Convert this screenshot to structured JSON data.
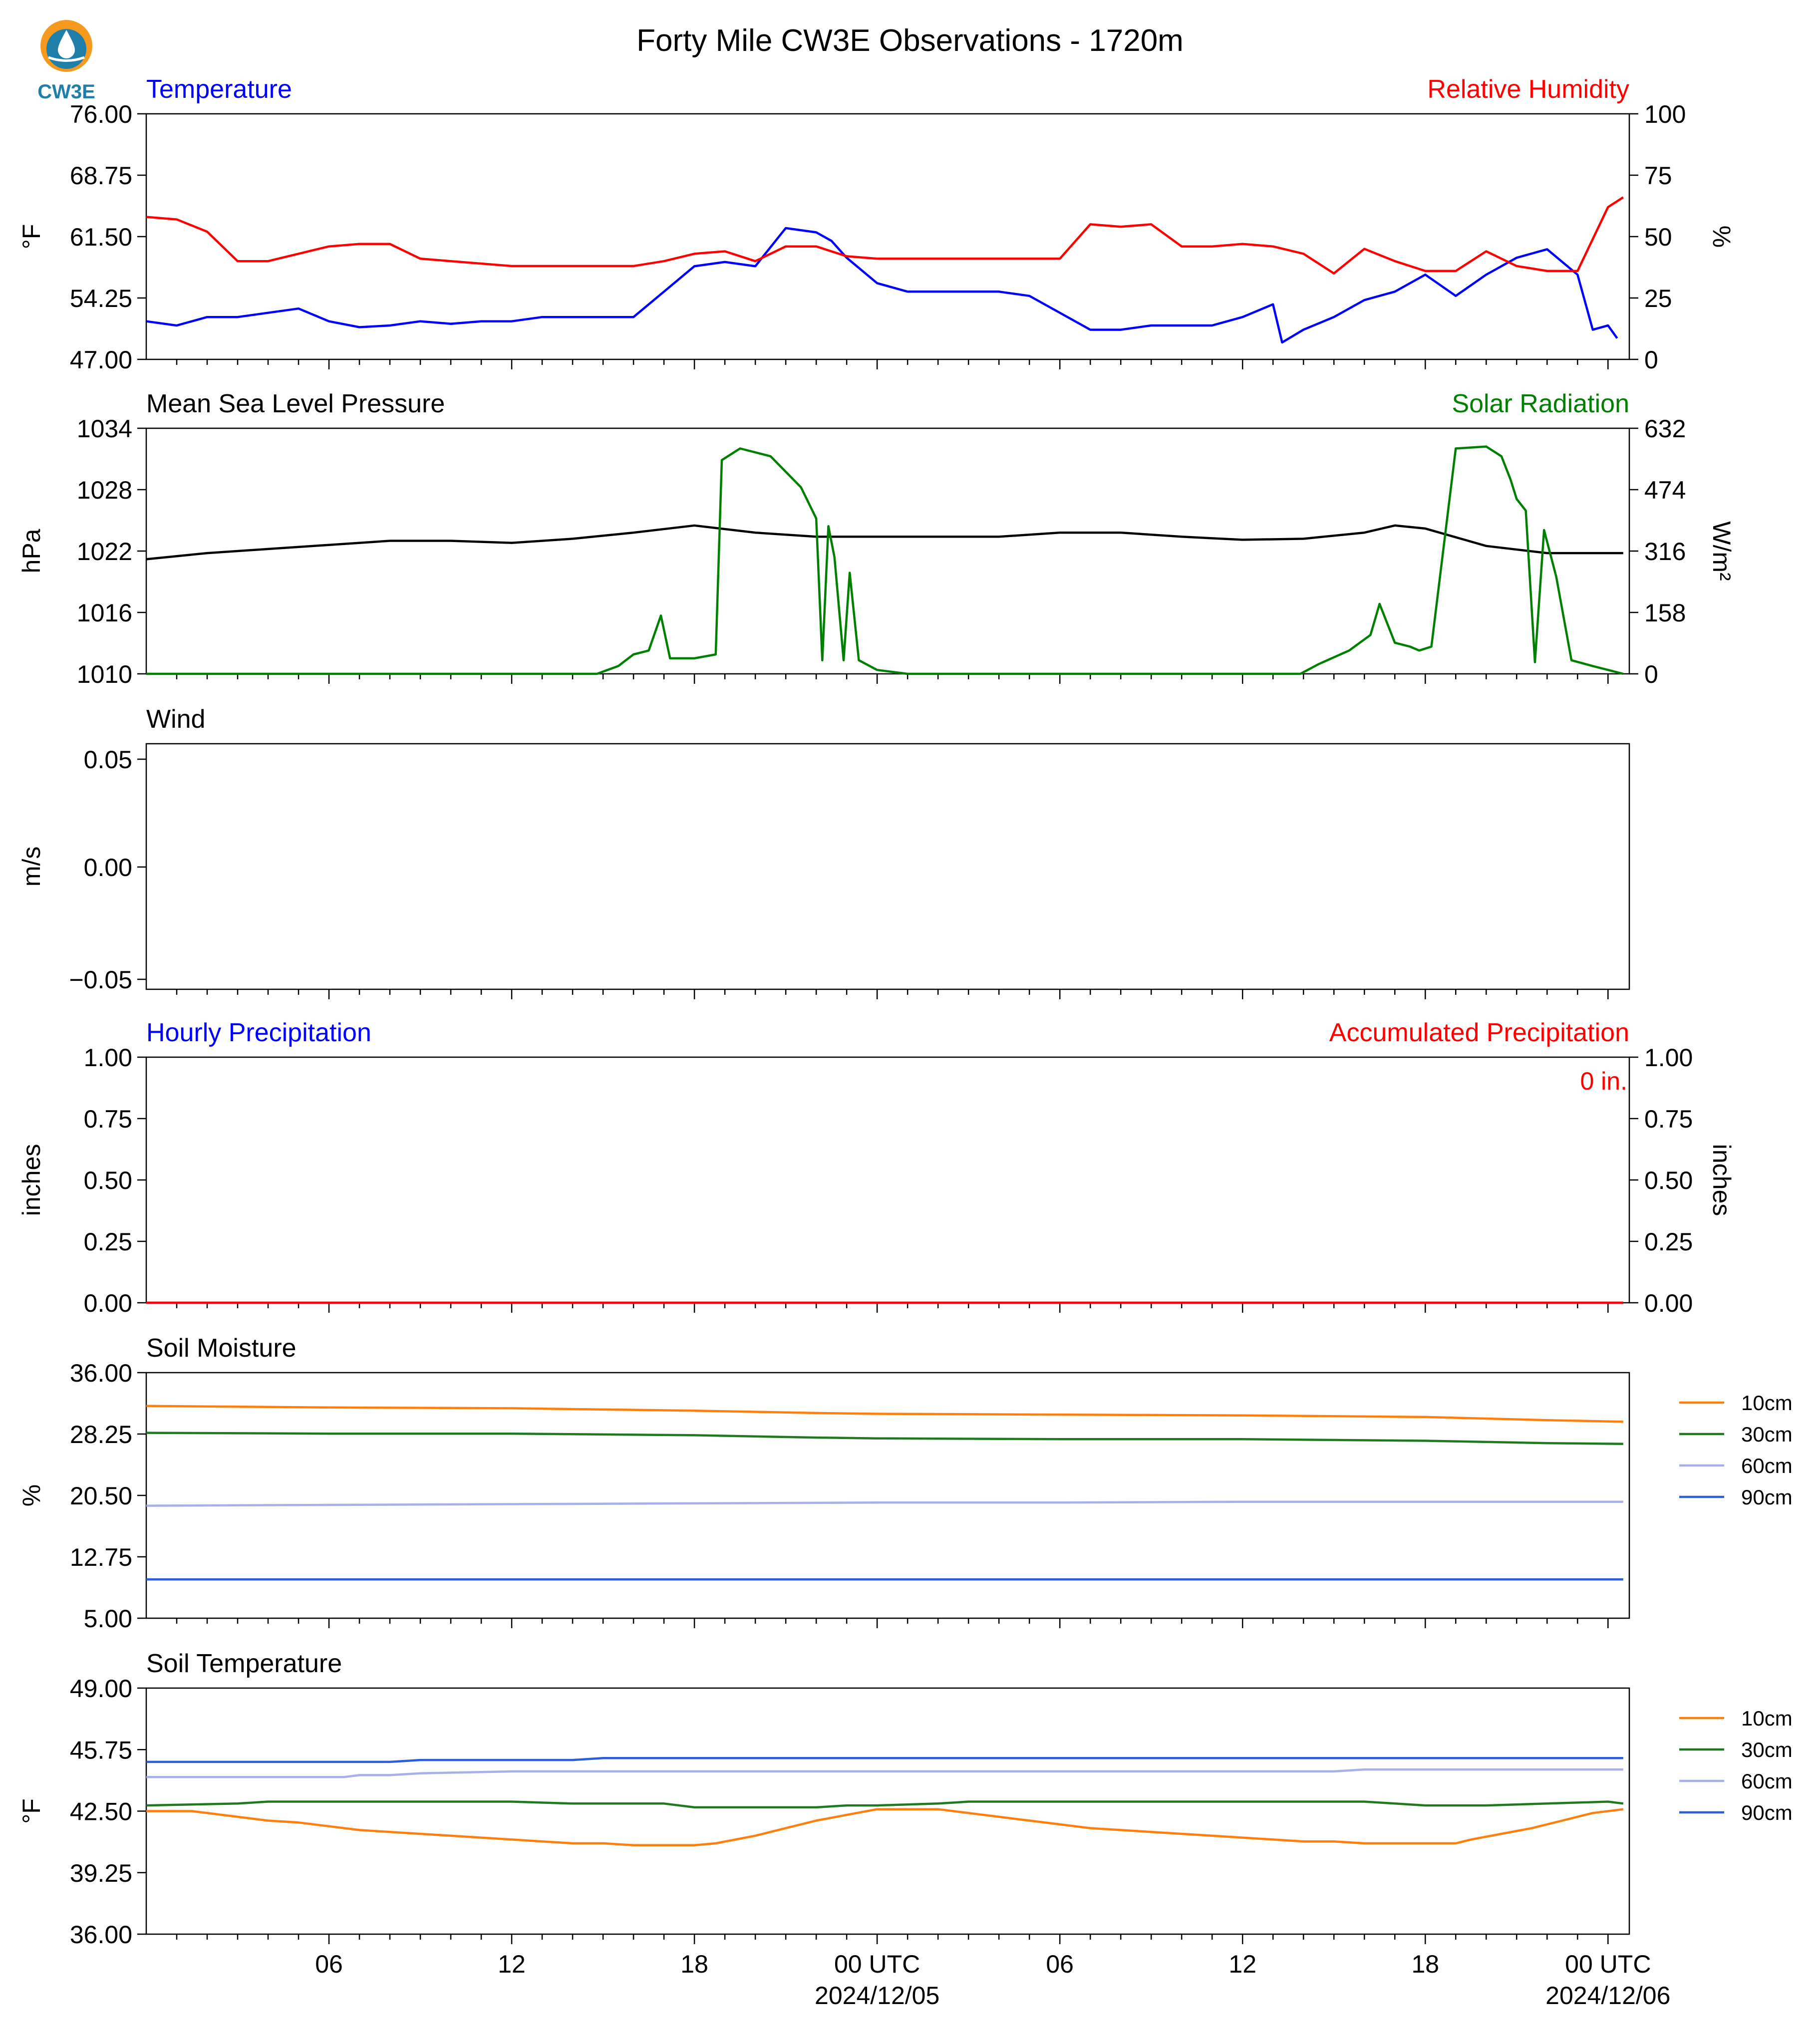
{
  "page_title": "Forty Mile CW3E Observations - 1720m",
  "logo": {
    "text": "CW3E",
    "icon": "cw3e-logo-icon",
    "ring_color": "#f59a1e",
    "drop_color": "#1f7fa8"
  },
  "x_axis": {
    "hour_ticks": [
      6,
      12,
      18,
      24,
      30,
      36,
      42,
      48
    ],
    "tick_labels": [
      "06",
      "12",
      "18",
      "00 UTC",
      "06",
      "12",
      "18",
      "00 UTC"
    ],
    "date_labels": [
      "",
      "",
      "",
      "2024/12/05",
      "",
      "",
      "",
      "2024/12/06"
    ]
  },
  "chart_data": [
    {
      "type": "line",
      "title_left": "Temperature",
      "title_left_color": "#0000ff",
      "title_right": "Relative Humidity",
      "title_right_color": "#ff0000",
      "ylabel": "°F",
      "ylabel_right": "%",
      "ylim": [
        47,
        76
      ],
      "ylim_right": [
        0,
        100
      ],
      "yticks": [
        "76.00",
        "68.75",
        "61.50",
        "54.25",
        "47.00"
      ],
      "yticks_right": [
        "100",
        "75",
        "50",
        "25",
        "0"
      ],
      "series": [
        {
          "axis": "left",
          "color": "#0000ff",
          "x": [
            0,
            1,
            2,
            3,
            4,
            5,
            6,
            7,
            8,
            9,
            10,
            11,
            12,
            13,
            14,
            15,
            16,
            17,
            18,
            19,
            20,
            21,
            22,
            22.5,
            23,
            24,
            25,
            26,
            27,
            28,
            29,
            30,
            31,
            32,
            33,
            34,
            35,
            36,
            37,
            37.3,
            38,
            39,
            40,
            41,
            42,
            43,
            44,
            45,
            46,
            47,
            47.5,
            48,
            48.3
          ],
          "y": [
            51.5,
            51,
            52,
            52,
            52.5,
            53,
            51.5,
            50.8,
            51,
            51.5,
            51.2,
            51.5,
            51.5,
            52,
            52,
            52,
            52,
            55,
            58,
            58.5,
            58,
            62.5,
            62,
            61,
            59,
            56,
            55,
            55,
            55,
            55,
            54.5,
            52.5,
            50.5,
            50.5,
            51,
            51,
            51,
            52,
            53.5,
            49,
            50.5,
            52,
            54,
            55,
            57,
            54.5,
            57,
            59,
            60,
            57,
            50.5,
            51,
            49.5
          ]
        },
        {
          "axis": "right",
          "color": "#ff0000",
          "x": [
            0,
            1,
            2,
            3,
            4,
            5,
            6,
            7,
            8,
            9,
            10,
            11,
            12,
            13,
            14,
            15,
            16,
            17,
            18,
            19,
            20,
            21,
            22,
            23,
            24,
            25,
            26,
            27,
            28,
            29,
            30,
            31,
            32,
            33,
            34,
            35,
            36,
            37,
            38,
            39,
            40,
            41,
            42,
            43,
            44,
            45,
            46,
            47,
            48,
            48.5
          ],
          "y": [
            58,
            57,
            52,
            40,
            40,
            43,
            46,
            47,
            47,
            41,
            40,
            39,
            38,
            38,
            38,
            38,
            38,
            40,
            43,
            44,
            40,
            46,
            46,
            42,
            41,
            41,
            41,
            41,
            41,
            41,
            41,
            55,
            54,
            55,
            46,
            46,
            47,
            46,
            43,
            35,
            45,
            40,
            36,
            36,
            44,
            38,
            36,
            36,
            62,
            66
          ]
        }
      ]
    },
    {
      "type": "line",
      "title_left": "Mean Sea Level Pressure",
      "title_left_color": "#000000",
      "title_right": "Solar Radiation",
      "title_right_color": "#008000",
      "ylabel": "hPa",
      "ylabel_right": "W/m²",
      "ylim": [
        1010,
        1034
      ],
      "ylim_right": [
        0,
        632
      ],
      "yticks": [
        "1034",
        "1028",
        "1022",
        "1016",
        "1010"
      ],
      "yticks_right": [
        "632",
        "474",
        "316",
        "158",
        "0"
      ],
      "series": [
        {
          "axis": "left",
          "color": "#000000",
          "x": [
            0,
            2,
            4,
            6,
            8,
            10,
            12,
            14,
            16,
            18,
            20,
            22,
            24,
            26,
            28,
            30,
            32,
            34,
            36,
            38,
            40,
            41,
            42,
            44,
            46,
            48,
            48.5
          ],
          "y": [
            1021.2,
            1021.8,
            1022.2,
            1022.6,
            1023,
            1023,
            1022.8,
            1023.2,
            1023.8,
            1024.5,
            1023.8,
            1023.4,
            1023.4,
            1023.4,
            1023.4,
            1023.8,
            1023.8,
            1023.4,
            1023.1,
            1023.2,
            1023.8,
            1024.5,
            1024.2,
            1022.5,
            1021.8,
            1021.8,
            1021.8
          ]
        },
        {
          "axis": "right",
          "color": "#008000",
          "x": [
            0,
            14.8,
            15.5,
            16,
            16.5,
            16.9,
            17.2,
            18,
            18.7,
            18.9,
            19.5,
            20.5,
            21.5,
            22,
            22.2,
            22.4,
            22.6,
            22.9,
            23.1,
            23.4,
            24,
            25,
            37.9,
            38.5,
            39.5,
            40.2,
            40.5,
            41,
            41.5,
            41.8,
            42.2,
            43,
            44,
            44.5,
            44.8,
            45,
            45.3,
            45.6,
            45.9,
            46.3,
            46.8,
            47.5,
            48,
            48.5
          ],
          "y": [
            0,
            0,
            20,
            50,
            60,
            150,
            40,
            40,
            50,
            550,
            580,
            560,
            480,
            400,
            35,
            380,
            300,
            35,
            260,
            35,
            10,
            0,
            0,
            25,
            60,
            100,
            180,
            80,
            70,
            60,
            70,
            580,
            585,
            560,
            500,
            450,
            420,
            30,
            370,
            250,
            35,
            20,
            10,
            0
          ]
        }
      ]
    },
    {
      "type": "line",
      "title_left": "Wind",
      "title_left_color": "#000000",
      "ylabel": "m/s",
      "ylim": [
        -0.055,
        0.055
      ],
      "yticks": [
        "0.05",
        "0.00",
        "−0.05"
      ],
      "series": []
    },
    {
      "type": "line",
      "title_left": "Hourly Precipitation",
      "title_left_color": "#0000ff",
      "title_right": "Accumulated Precipitation",
      "title_right_color": "#ff0000",
      "annotation": "0 in.",
      "annotation_color": "#ff0000",
      "ylabel": "inches",
      "ylabel_right": "inches",
      "ylim": [
        0,
        1
      ],
      "ylim_right": [
        0,
        1
      ],
      "yticks": [
        "1.00",
        "0.75",
        "0.50",
        "0.25",
        "0.00"
      ],
      "yticks_right": [
        "1.00",
        "0.75",
        "0.50",
        "0.25",
        "0.00"
      ],
      "series": [
        {
          "axis": "left",
          "color": "#0000ff",
          "x": [
            0,
            48.5
          ],
          "y": [
            0,
            0
          ]
        },
        {
          "axis": "right",
          "color": "#ff0000",
          "x": [
            0,
            48.5
          ],
          "y": [
            0,
            0
          ]
        }
      ]
    },
    {
      "type": "line",
      "title_left": "Soil Moisture",
      "title_left_color": "#000000",
      "ylabel": "%",
      "ylim": [
        5,
        36
      ],
      "yticks": [
        "36.00",
        "28.25",
        "20.50",
        "12.75",
        "5.00"
      ],
      "legend_position": "right",
      "series": [
        {
          "name": "10cm",
          "color": "#ff7f0e",
          "x": [
            0,
            6,
            12,
            18,
            22,
            24,
            30,
            36,
            42,
            46,
            48.5
          ],
          "y": [
            31.8,
            31.6,
            31.5,
            31.2,
            30.9,
            30.8,
            30.7,
            30.6,
            30.4,
            30.0,
            29.8
          ]
        },
        {
          "name": "30cm",
          "color": "#1f7a1f",
          "x": [
            0,
            6,
            12,
            18,
            22,
            24,
            30,
            36,
            42,
            46,
            48.5
          ],
          "y": [
            28.4,
            28.3,
            28.3,
            28.1,
            27.8,
            27.7,
            27.6,
            27.6,
            27.4,
            27.1,
            27.0
          ]
        },
        {
          "name": "60cm",
          "color": "#a7b0e8",
          "x": [
            0,
            6,
            12,
            18,
            24,
            30,
            36,
            42,
            48.5
          ],
          "y": [
            19.2,
            19.3,
            19.4,
            19.5,
            19.6,
            19.6,
            19.7,
            19.7,
            19.7
          ]
        },
        {
          "name": "90cm",
          "color": "#2b5fd9",
          "x": [
            0,
            12,
            24,
            36,
            48.5
          ],
          "y": [
            9.9,
            9.9,
            9.9,
            9.9,
            9.9
          ]
        }
      ]
    },
    {
      "type": "line",
      "title_left": "Soil Temperature",
      "title_left_color": "#000000",
      "ylabel": "°F",
      "ylim": [
        36,
        49
      ],
      "yticks": [
        "49.00",
        "45.75",
        "42.50",
        "39.25",
        "36.00"
      ],
      "legend_position": "right",
      "series": [
        {
          "name": "10cm",
          "color": "#ff7f0e",
          "x": [
            0,
            1.5,
            3,
            4,
            5,
            6,
            7,
            8,
            9,
            10,
            11,
            12,
            13,
            14,
            15,
            16,
            17,
            18,
            18.7,
            20,
            21,
            22,
            23,
            24,
            25,
            26,
            27,
            28,
            29,
            30,
            31,
            32,
            33,
            34,
            35,
            36,
            37,
            38,
            39,
            40,
            41,
            42,
            43,
            43.5,
            44.5,
            45.5,
            46.5,
            47.5,
            48.5
          ],
          "y": [
            42.5,
            42.5,
            42.2,
            42,
            41.9,
            41.7,
            41.5,
            41.4,
            41.3,
            41.2,
            41.1,
            41,
            40.9,
            40.8,
            40.8,
            40.7,
            40.7,
            40.7,
            40.8,
            41.2,
            41.6,
            42,
            42.3,
            42.6,
            42.6,
            42.6,
            42.4,
            42.2,
            42,
            41.8,
            41.6,
            41.5,
            41.4,
            41.3,
            41.2,
            41.1,
            41,
            40.9,
            40.9,
            40.8,
            40.8,
            40.8,
            40.8,
            41,
            41.3,
            41.6,
            42,
            42.4,
            42.6
          ]
        },
        {
          "name": "30cm",
          "color": "#1f7a1f",
          "x": [
            0,
            3,
            4,
            6,
            12,
            14,
            16,
            17,
            18,
            20,
            22,
            23,
            24,
            26,
            27,
            30,
            32,
            34,
            36,
            38,
            40,
            41,
            42,
            44,
            46,
            48,
            48.5
          ],
          "y": [
            42.8,
            42.9,
            43,
            43,
            43,
            42.9,
            42.9,
            42.9,
            42.7,
            42.7,
            42.7,
            42.8,
            42.8,
            42.9,
            43,
            43,
            43,
            43,
            43,
            43,
            43,
            42.9,
            42.8,
            42.8,
            42.9,
            43,
            42.9
          ]
        },
        {
          "name": "60cm",
          "color": "#a7b0e8",
          "x": [
            0,
            6.5,
            7,
            8,
            9,
            12,
            18,
            24,
            30,
            36,
            39,
            40,
            42,
            44,
            46,
            48,
            48.5
          ],
          "y": [
            44.3,
            44.3,
            44.4,
            44.4,
            44.5,
            44.6,
            44.6,
            44.6,
            44.6,
            44.6,
            44.6,
            44.7,
            44.7,
            44.7,
            44.7,
            44.7,
            44.7
          ]
        },
        {
          "name": "90cm",
          "color": "#2b5fd9",
          "x": [
            0,
            6,
            8,
            9,
            11,
            12,
            14,
            15,
            16,
            20,
            24,
            30,
            36,
            42,
            48.5
          ],
          "y": [
            45.1,
            45.1,
            45.1,
            45.2,
            45.2,
            45.2,
            45.2,
            45.3,
            45.3,
            45.3,
            45.3,
            45.3,
            45.3,
            45.3,
            45.3
          ]
        }
      ]
    }
  ]
}
